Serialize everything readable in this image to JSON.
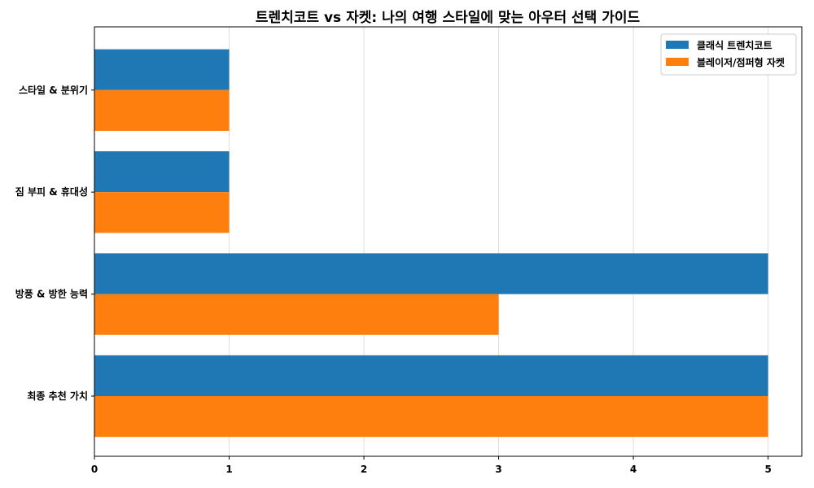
{
  "chart_data": {
    "type": "bar",
    "orientation": "horizontal",
    "title": "트렌치코트 vs 자켓: 나의 여행 스타일에 맞는 아우터 선택 가이드",
    "xlabel": "",
    "ylabel": "",
    "categories": [
      "스타일 & 분위기",
      "짐 부피 & 휴대성",
      "방풍 & 방한 능력",
      "최종 추천 가치"
    ],
    "series": [
      {
        "name": "클래식 트렌치코트",
        "color": "#1f77b4",
        "values": [
          1,
          1,
          5,
          5
        ]
      },
      {
        "name": "블레이저/점퍼형 자켓",
        "color": "#ff7f0e",
        "values": [
          1,
          1,
          3,
          5
        ]
      }
    ],
    "xlim": [
      0,
      5.25
    ],
    "xticks": [
      "0",
      "1",
      "2",
      "3",
      "4",
      "5"
    ],
    "grid": "x",
    "legend": "top-right"
  }
}
